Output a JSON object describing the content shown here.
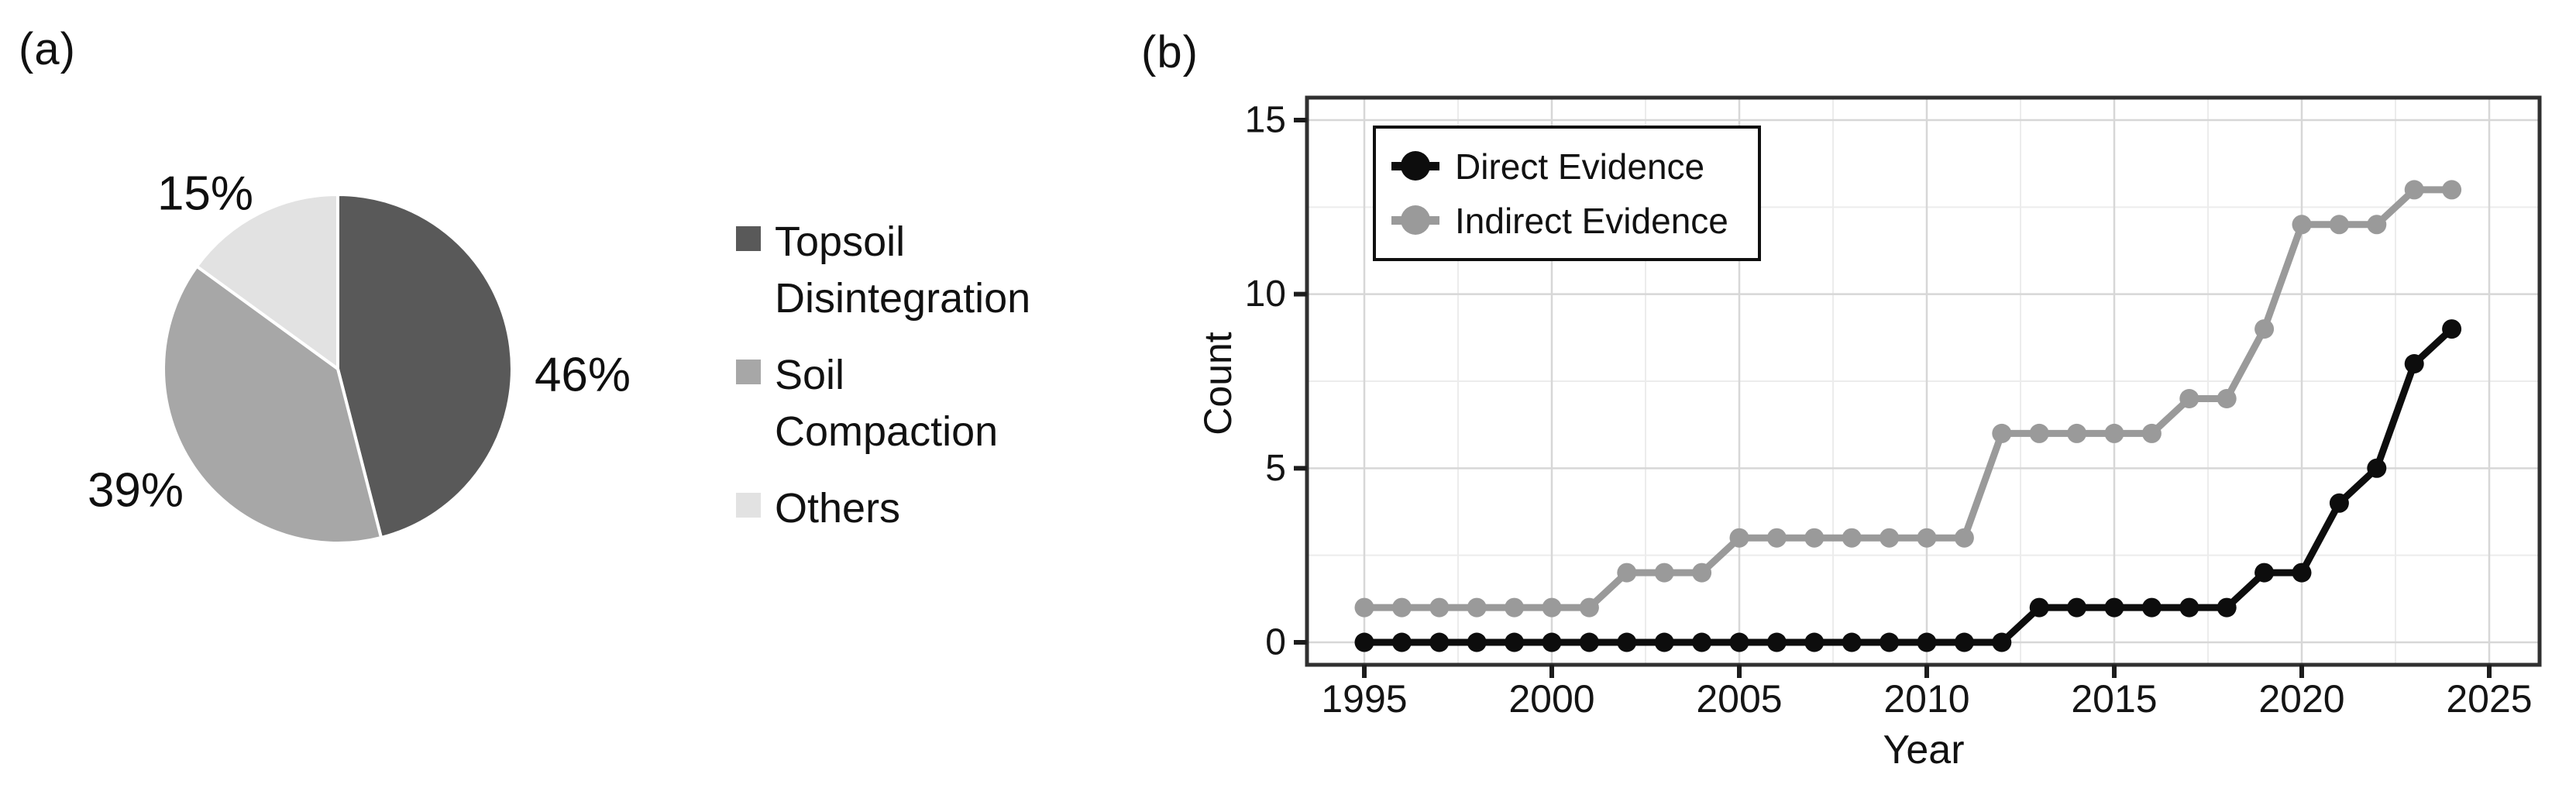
{
  "panels": {
    "a": {
      "label": "(a)"
    },
    "b": {
      "label": "(b)"
    }
  },
  "pie": {
    "slices": [
      {
        "label": "Topsoil Disintegration",
        "pct": 46,
        "pct_label": "46%",
        "color": "#595959"
      },
      {
        "label": "Soil Compaction",
        "pct": 39,
        "pct_label": "39%",
        "color": "#a7a7a7"
      },
      {
        "label": "Others",
        "pct": 15,
        "pct_label": "15%",
        "color": "#e2e2e2"
      }
    ]
  },
  "chart_data": {
    "type": "line",
    "title": "",
    "xlabel": "Year",
    "ylabel": "Count",
    "x_ticks": [
      1995,
      2000,
      2005,
      2010,
      2015,
      2020,
      2025
    ],
    "y_ticks": [
      0,
      5,
      10,
      15
    ],
    "xlim": [
      1993.5,
      2026.4
    ],
    "ylim": [
      -0.65,
      15.65
    ],
    "grid": "major+minor",
    "legend_position": "top-left-inside",
    "years": [
      1995,
      1996,
      1997,
      1998,
      1999,
      2000,
      2001,
      2002,
      2003,
      2004,
      2005,
      2006,
      2007,
      2008,
      2009,
      2010,
      2011,
      2012,
      2013,
      2014,
      2015,
      2016,
      2017,
      2018,
      2019,
      2020,
      2021,
      2022,
      2023,
      2024
    ],
    "series": [
      {
        "name": "Direct Evidence",
        "color": "#0d0d0d",
        "values": [
          0,
          0,
          0,
          0,
          0,
          0,
          0,
          0,
          0,
          0,
          0,
          0,
          0,
          0,
          0,
          0,
          0,
          0,
          1,
          1,
          1,
          1,
          1,
          1,
          2,
          2,
          4,
          5,
          8,
          9
        ]
      },
      {
        "name": "Indirect Evidence",
        "color": "#9a9a9a",
        "values": [
          1,
          1,
          1,
          1,
          1,
          1,
          1,
          2,
          2,
          2,
          3,
          3,
          3,
          3,
          3,
          3,
          3,
          6,
          6,
          6,
          6,
          6,
          7,
          7,
          9,
          12,
          12,
          12,
          13,
          13
        ]
      }
    ],
    "style_colors": {
      "grid_major": "#d7d7d7",
      "grid_minor": "#ececec",
      "panel_border": "#303030",
      "tick": "#1c1c1c",
      "pie_divider": "#ffffff"
    }
  }
}
